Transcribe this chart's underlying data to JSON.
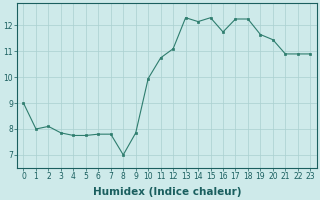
{
  "x": [
    0,
    1,
    2,
    3,
    4,
    5,
    6,
    7,
    8,
    9,
    10,
    11,
    12,
    13,
    14,
    15,
    16,
    17,
    18,
    19,
    20,
    21,
    22,
    23
  ],
  "y": [
    9.0,
    8.0,
    8.1,
    7.85,
    7.75,
    7.75,
    7.8,
    7.8,
    7.0,
    7.85,
    9.95,
    10.75,
    11.1,
    12.3,
    12.15,
    12.3,
    11.75,
    12.25,
    12.25,
    11.65,
    11.45,
    10.9,
    10.9,
    10.9
  ],
  "line_color": "#2e7d6e",
  "marker_color": "#2e7d6e",
  "bg_color": "#ceeaea",
  "grid_color": "#aad0d0",
  "xlabel": "Humidex (Indice chaleur)",
  "xlim": [
    -0.5,
    23.5
  ],
  "ylim": [
    6.5,
    12.85
  ],
  "yticks": [
    7,
    8,
    9,
    10,
    11,
    12
  ],
  "xticks": [
    0,
    1,
    2,
    3,
    4,
    5,
    6,
    7,
    8,
    9,
    10,
    11,
    12,
    13,
    14,
    15,
    16,
    17,
    18,
    19,
    20,
    21,
    22,
    23
  ],
  "tick_fontsize": 5.5,
  "xlabel_fontsize": 7.5
}
